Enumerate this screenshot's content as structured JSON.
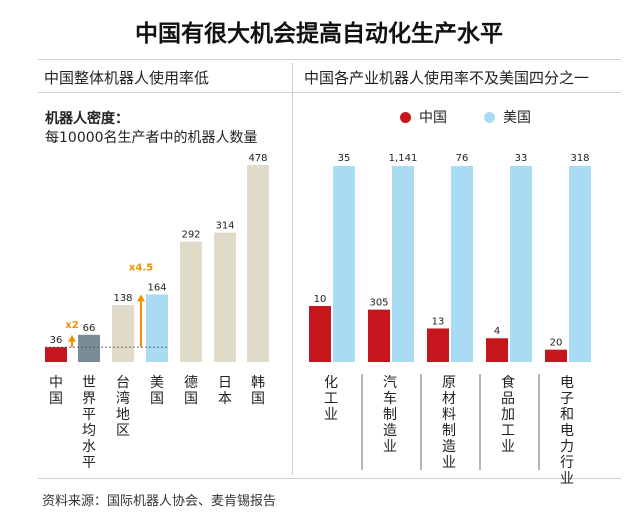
{
  "title": "中国有很大机会提高自动化生产水平",
  "left": {
    "subtitle": "中国整体机器人使用率低",
    "density_label": "机器人密度：",
    "density_desc": "每10000名生产者中的机器人数量",
    "multiplier_a": "x2",
    "multiplier_b": "x4.5"
  },
  "right": {
    "subtitle": "中国各产业机器人使用率不及美国四分之一",
    "legend": {
      "china": "中国",
      "usa": "美国"
    }
  },
  "source": "资料来源：国际机器人协会、麦肯锡报告",
  "colors": {
    "china": "#c4161c",
    "usa": "#a9dcf2",
    "world": "#7a8c95",
    "others": "#e0dbc8",
    "arrow": "#f39200"
  },
  "chart_data": [
    {
      "type": "bar",
      "categories": [
        "中国",
        "世界平均水平",
        "台湾地区",
        "美国",
        "德国",
        "日本",
        "韩国"
      ],
      "values": [
        36,
        66,
        138,
        164,
        292,
        314,
        478
      ],
      "value_labels": [
        "36",
        "66",
        "138",
        "164",
        "292",
        "314",
        "478"
      ],
      "title": "中国整体机器人使用率低",
      "ylabel": "每10000名生产者中的机器人数量"
    },
    {
      "type": "bar",
      "categories": [
        "化工业",
        "汽车制造业",
        "原材料制造业",
        "食品加工业",
        "电子和电力行业"
      ],
      "series": [
        {
          "name": "中国",
          "values": [
            10,
            305,
            13,
            4,
            20
          ],
          "value_labels": [
            "10",
            "305",
            "13",
            "4",
            "20"
          ]
        },
        {
          "name": "美国",
          "values": [
            35,
            1141,
            76,
            33,
            318
          ],
          "value_labels": [
            "35",
            "1,141",
            "76",
            "33",
            "318"
          ]
        }
      ],
      "title": "中国各产业机器人使用率不及美国四分之一",
      "legend": "top"
    }
  ]
}
